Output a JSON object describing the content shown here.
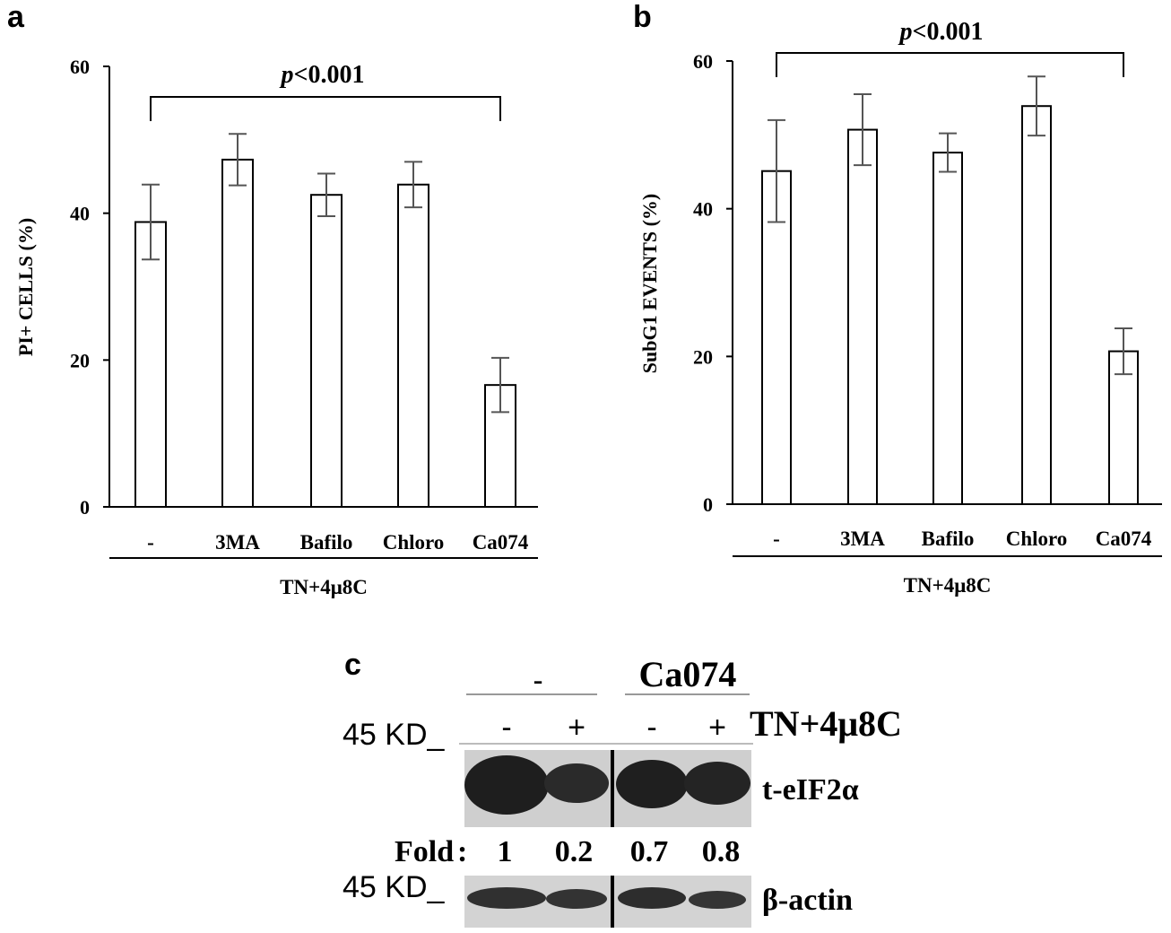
{
  "chart_data": [
    {
      "panel": "a",
      "type": "bar",
      "ylabel": "PI+ CELLS (%)",
      "ylim": [
        0,
        60
      ],
      "yticks": [
        0,
        20,
        40,
        60
      ],
      "categories": [
        "-",
        "3MA",
        "Bafilo",
        "Chloro",
        "Ca074"
      ],
      "group_label": "TN+4μ8C",
      "values": [
        38.8,
        47.3,
        42.5,
        43.9,
        16.6
      ],
      "errors": [
        5.1,
        3.5,
        2.9,
        3.1,
        3.7
      ],
      "annotation": {
        "text_italic": "p",
        "text": "<0.001"
      }
    },
    {
      "panel": "b",
      "type": "bar",
      "ylabel": "SubG1 EVENTS (%)",
      "ylim": [
        0,
        60
      ],
      "yticks": [
        0,
        20,
        40,
        60
      ],
      "categories": [
        "-",
        "3MA",
        "Bafilo",
        "Chloro",
        "Ca074"
      ],
      "group_label": "TN+4μ8C",
      "values": [
        45.1,
        50.7,
        47.6,
        53.9,
        20.7
      ],
      "errors": [
        6.9,
        4.8,
        2.6,
        4.0,
        3.1
      ],
      "annotation": {
        "text_italic": "p",
        "text": "<0.001"
      }
    }
  ],
  "blot": {
    "panel": "c",
    "groups": [
      "-",
      "Ca074"
    ],
    "lanes": [
      "-",
      "+",
      "-",
      "+"
    ],
    "treatment": "TN+4μ8C",
    "marker_top": "45 KD_",
    "marker_bottom": "45 KD_",
    "band_top": "t-eIF2α",
    "band_bottom": "β-actin",
    "fold_label": "Fold",
    "fold_colon": ":",
    "fold_values": [
      "1",
      "0.2",
      "0.7",
      "0.8"
    ]
  }
}
